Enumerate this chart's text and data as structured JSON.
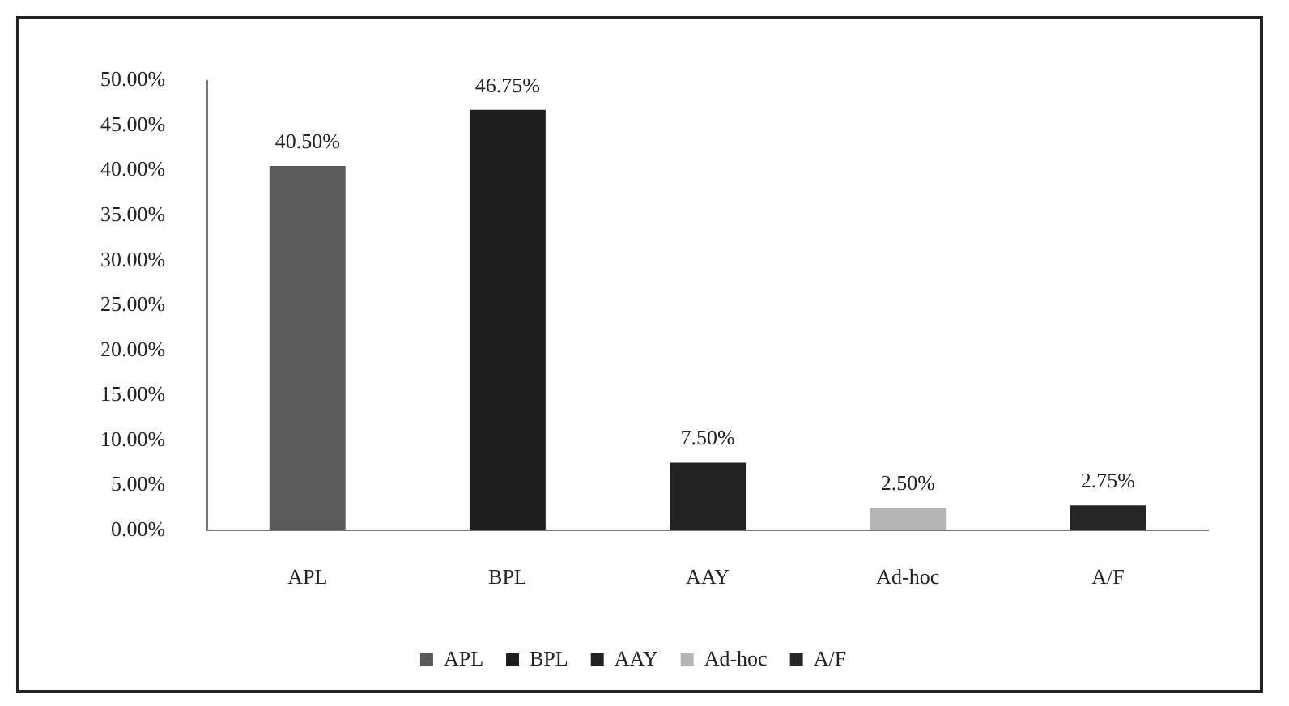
{
  "chart_data": {
    "type": "bar",
    "categories": [
      "APL",
      "BPL",
      "AAY",
      "Ad-hoc",
      "A/F"
    ],
    "series": [
      {
        "name": "APL",
        "color": "#5a5a5a",
        "values": [
          40.5,
          null,
          null,
          null,
          null
        ],
        "value_labels": [
          "40.50%",
          null,
          null,
          null,
          null
        ]
      },
      {
        "name": "BPL",
        "color": "#1e1e1e",
        "values": [
          null,
          46.75,
          null,
          null,
          null
        ],
        "value_labels": [
          null,
          "46.75%",
          null,
          null,
          null
        ]
      },
      {
        "name": "AAY",
        "color": "#222222",
        "values": [
          null,
          null,
          7.5,
          null,
          null
        ],
        "value_labels": [
          null,
          null,
          "7.50%",
          null,
          null
        ]
      },
      {
        "name": "Ad-hoc",
        "color": "#b4b4b4",
        "values": [
          null,
          null,
          null,
          2.5,
          null
        ],
        "value_labels": [
          null,
          null,
          null,
          "2.50%",
          null
        ]
      },
      {
        "name": "A/F",
        "color": "#262626",
        "values": [
          null,
          null,
          null,
          null,
          2.75
        ],
        "value_labels": [
          null,
          null,
          null,
          null,
          "2.75%"
        ]
      }
    ],
    "ylim": [
      0,
      50
    ],
    "yticks": [
      {
        "value": 0,
        "label": "0.00%"
      },
      {
        "value": 5,
        "label": "5.00%"
      },
      {
        "value": 10,
        "label": "10.00%"
      },
      {
        "value": 15,
        "label": "15.00%"
      },
      {
        "value": 20,
        "label": "20.00%"
      },
      {
        "value": 25,
        "label": "25.00%"
      },
      {
        "value": 30,
        "label": "30.00%"
      },
      {
        "value": 35,
        "label": "35.00%"
      },
      {
        "value": 40,
        "label": "40.00%"
      },
      {
        "value": 45,
        "label": "45.00%"
      },
      {
        "value": 50,
        "label": "50.00%"
      }
    ],
    "grid": false,
    "legend": "bottom"
  }
}
